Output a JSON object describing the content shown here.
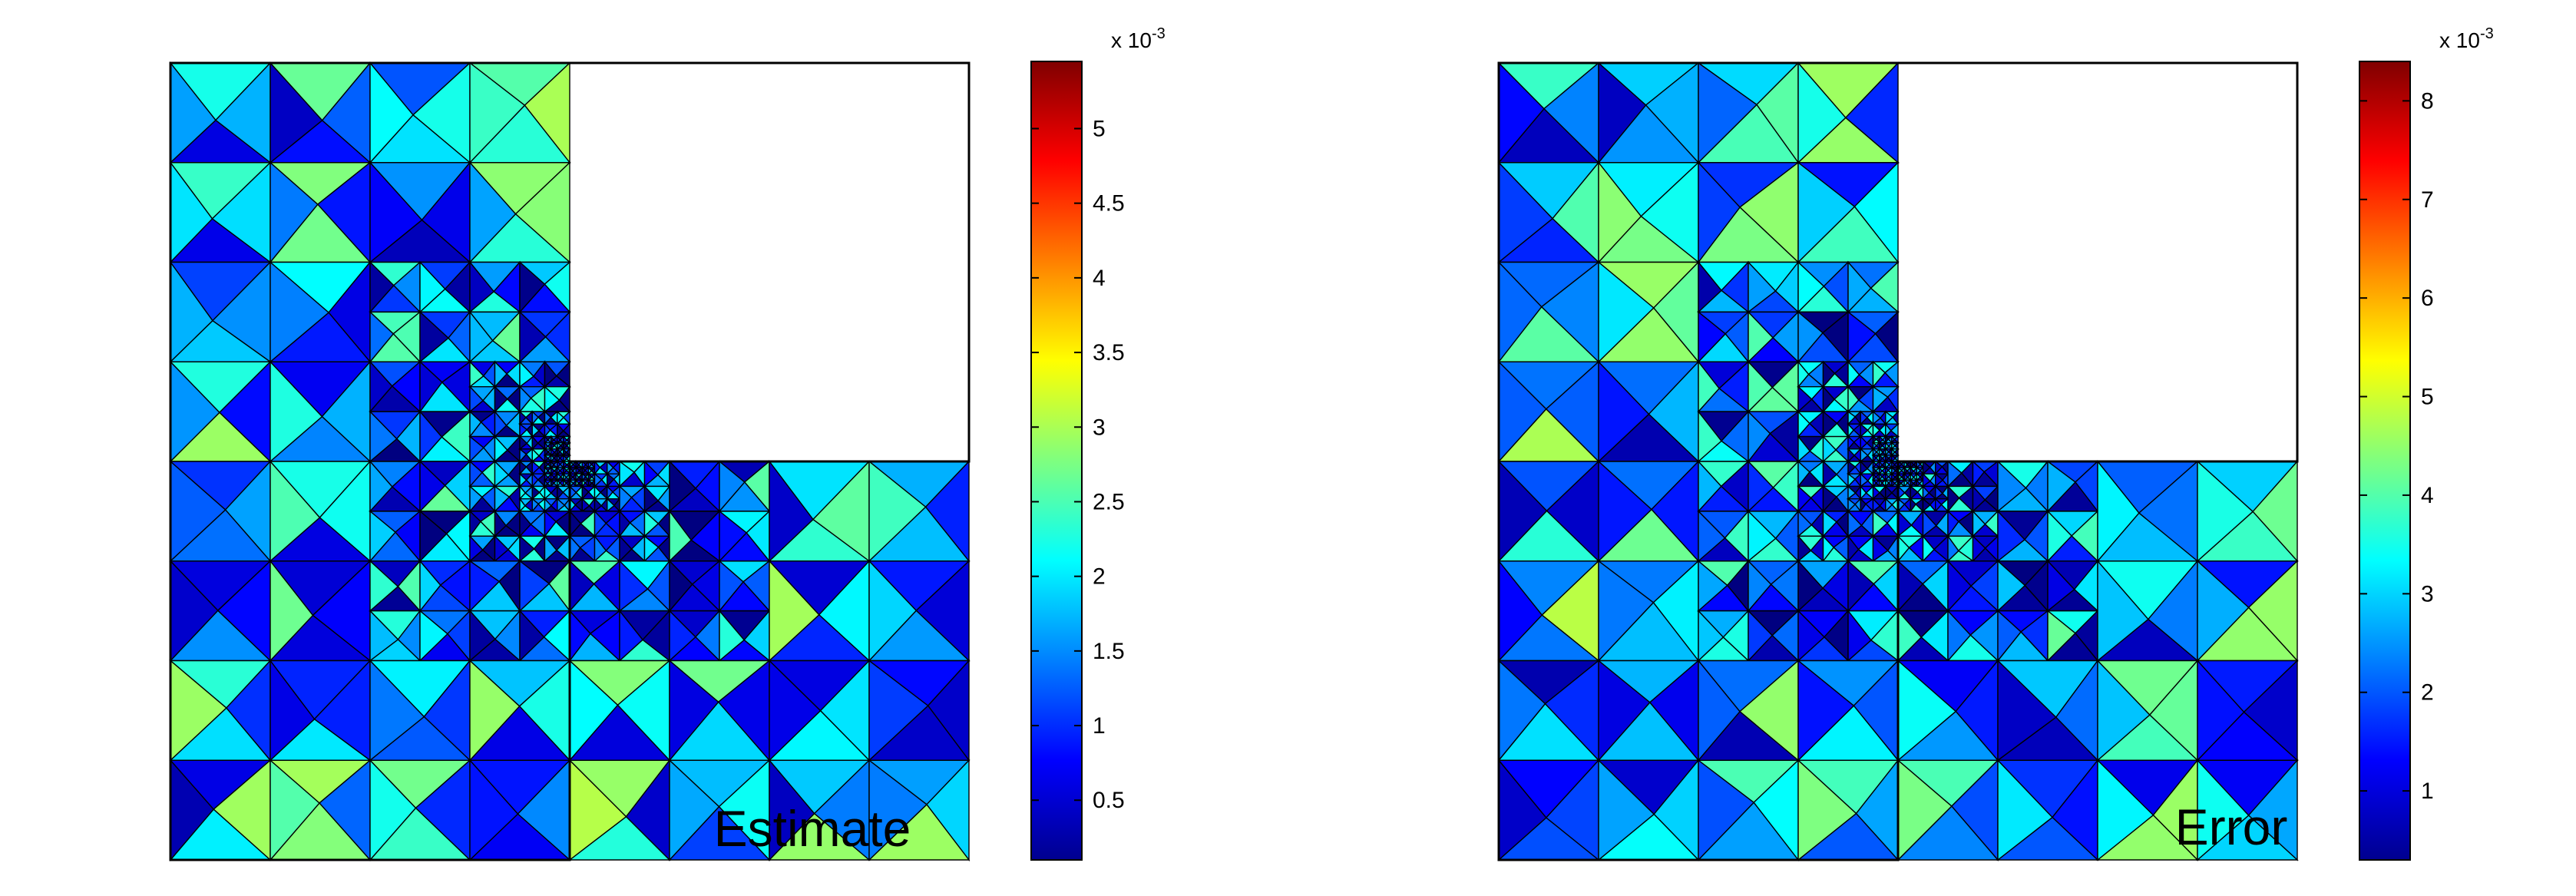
{
  "chart_data": [
    {
      "type": "heatmap",
      "title": "Estimate",
      "domain_shape": "L-shaped, top-right quadrant removed (reentrant corner), triangular mesh refined toward the corner",
      "colormap": "jet",
      "colorbar": {
        "range": [
          0.1,
          5.45
        ],
        "scale_label": "x 10",
        "scale_exponent": "-3",
        "ticks": [
          0.5,
          1,
          1.5,
          2,
          2.5,
          3,
          3.5,
          4,
          4.5,
          5
        ],
        "tick_labels": [
          "0.5",
          "1",
          "1.5",
          "2",
          "2.5",
          "3",
          "3.5",
          "4",
          "4.5",
          "5"
        ]
      },
      "seed": 7
    },
    {
      "type": "heatmap",
      "title": "Error",
      "domain_shape": "L-shaped, top-right quadrant removed (reentrant corner), triangular mesh refined toward the corner",
      "colormap": "jet",
      "colorbar": {
        "range": [
          0.3,
          8.4
        ],
        "scale_label": "x 10",
        "scale_exponent": "-3",
        "ticks": [
          1,
          2,
          3,
          4,
          5,
          6,
          7,
          8
        ],
        "tick_labels": [
          "1",
          "2",
          "3",
          "4",
          "5",
          "6",
          "7",
          "8"
        ]
      },
      "seed": 11
    }
  ]
}
